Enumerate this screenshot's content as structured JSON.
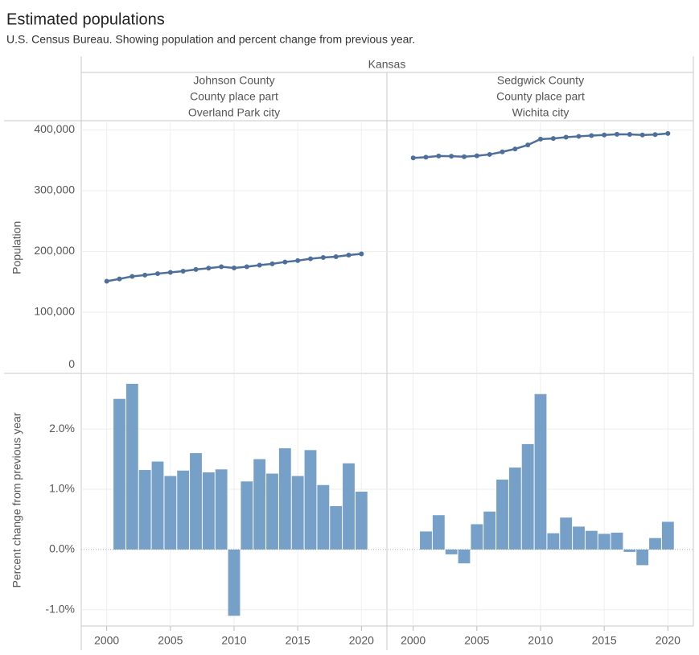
{
  "title": "Estimated populations",
  "subtitle": "U.S. Census Bureau. Showing population and percent change from previous year.",
  "facet_header": "Kansas",
  "chart_data": [
    {
      "type": "line",
      "header": [
        "Johnson County",
        "County place part",
        "Overland Park city"
      ],
      "ylabel": "Population",
      "x": [
        2000,
        2001,
        2002,
        2003,
        2004,
        2005,
        2006,
        2007,
        2008,
        2009,
        2010,
        2011,
        2012,
        2013,
        2014,
        2015,
        2016,
        2017,
        2018,
        2019,
        2020
      ],
      "values": [
        151000,
        154800,
        159000,
        161100,
        163500,
        165500,
        167600,
        170300,
        172500,
        174800,
        172900,
        174800,
        177500,
        179700,
        182700,
        184900,
        188000,
        190000,
        191400,
        194100,
        196000
      ],
      "color": "#4e6f9a",
      "xlim": [
        1998,
        2022
      ],
      "ylim": [
        0,
        412600
      ],
      "yticks": [
        0,
        {
          "value": 100000,
          "label": "100,000"
        },
        {
          "value": 200000,
          "label": "200,000"
        },
        {
          "value": 300000,
          "label": "300,000"
        },
        {
          "value": 400000,
          "label": "400,000"
        }
      ],
      "grid": true
    },
    {
      "type": "line",
      "header": [
        "Sedgwick County",
        "County place part",
        "Wichita city"
      ],
      "x": [
        2000,
        2001,
        2002,
        2003,
        2004,
        2005,
        2006,
        2007,
        2008,
        2009,
        2010,
        2011,
        2012,
        2013,
        2014,
        2015,
        2016,
        2017,
        2018,
        2019,
        2020
      ],
      "values": [
        354000,
        355100,
        357100,
        356800,
        356000,
        357500,
        359700,
        363900,
        368800,
        375300,
        385000,
        386000,
        388100,
        389500,
        390800,
        391800,
        392900,
        392700,
        391700,
        392400,
        394200
      ],
      "color": "#4e6f9a",
      "xlim": [
        1998,
        2022
      ],
      "ylim": [
        0,
        412600
      ],
      "grid": true
    },
    {
      "type": "bar",
      "ylabel": "Percent change from previous year",
      "x": [
        2000,
        2001,
        2002,
        2003,
        2004,
        2005,
        2006,
        2007,
        2008,
        2009,
        2010,
        2011,
        2012,
        2013,
        2014,
        2015,
        2016,
        2017,
        2018,
        2019,
        2020
      ],
      "values": [
        null,
        2.5,
        2.75,
        1.32,
        1.46,
        1.22,
        1.31,
        1.6,
        1.28,
        1.33,
        -1.1,
        1.13,
        1.5,
        1.26,
        1.68,
        1.22,
        1.65,
        1.07,
        0.72,
        1.43,
        0.96
      ],
      "color": "#76a0c8",
      "xlim": [
        1998,
        2022
      ],
      "ylim": [
        -1.27,
        2.91
      ],
      "yticks": [
        {
          "value": -1,
          "label": "-1.0%"
        },
        {
          "value": 0,
          "label": "0.0%"
        },
        {
          "value": 1,
          "label": "1.0%"
        },
        {
          "value": 2,
          "label": "2.0%"
        }
      ],
      "xticks": [
        2000,
        2005,
        2010,
        2015,
        2020
      ],
      "grid": true
    },
    {
      "type": "bar",
      "x": [
        2000,
        2001,
        2002,
        2003,
        2004,
        2005,
        2006,
        2007,
        2008,
        2009,
        2010,
        2011,
        2012,
        2013,
        2014,
        2015,
        2016,
        2017,
        2018,
        2019,
        2020
      ],
      "values": [
        null,
        0.3,
        0.57,
        -0.08,
        -0.23,
        0.42,
        0.63,
        1.16,
        1.36,
        1.75,
        2.58,
        0.27,
        0.53,
        0.38,
        0.31,
        0.26,
        0.28,
        -0.04,
        -0.26,
        0.19,
        0.46
      ],
      "color": "#76a0c8",
      "xlim": [
        1998,
        2022
      ],
      "ylim": [
        -1.27,
        2.91
      ],
      "xticks": [
        2000,
        2005,
        2010,
        2015,
        2020
      ],
      "grid": true
    }
  ]
}
